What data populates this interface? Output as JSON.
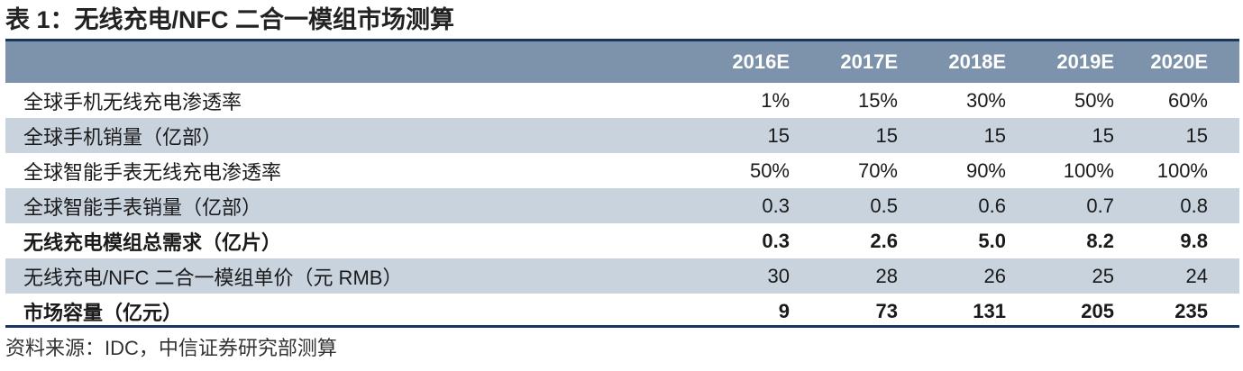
{
  "title": "表 1：无线充电/NFC 二合一模组市场测算",
  "table": {
    "columns": [
      "2016E",
      "2017E",
      "2018E",
      "2019E",
      "2020E"
    ],
    "rows": [
      {
        "label": "全球手机无线充电渗透率",
        "values": [
          "1%",
          "15%",
          "30%",
          "50%",
          "60%"
        ]
      },
      {
        "label": "全球手机销量（亿部）",
        "values": [
          "15",
          "15",
          "15",
          "15",
          "15"
        ]
      },
      {
        "label": "全球智能手表无线充电渗透率",
        "values": [
          "50%",
          "70%",
          "90%",
          "100%",
          "100%"
        ]
      },
      {
        "label": "全球智能手表销量（亿部）",
        "values": [
          "0.3",
          "0.5",
          "0.6",
          "0.7",
          "0.8"
        ]
      },
      {
        "label": "无线充电模组总需求（亿片）",
        "values": [
          "0.3",
          "2.6",
          "5.0",
          "8.2",
          "9.8"
        ]
      },
      {
        "label": "无线充电/NFC 二合一模组单价（元 RMB）",
        "values": [
          "30",
          "28",
          "26",
          "25",
          "24"
        ]
      },
      {
        "label": "市场容量（亿元）",
        "values": [
          "9",
          "73",
          "131",
          "205",
          "235"
        ]
      }
    ]
  },
  "source": "资料来源：IDC，中信证券研究部测算",
  "colors": {
    "header_bg": "#7d93ab",
    "row_shade": "#c9d3de",
    "rule": "#17375e"
  }
}
